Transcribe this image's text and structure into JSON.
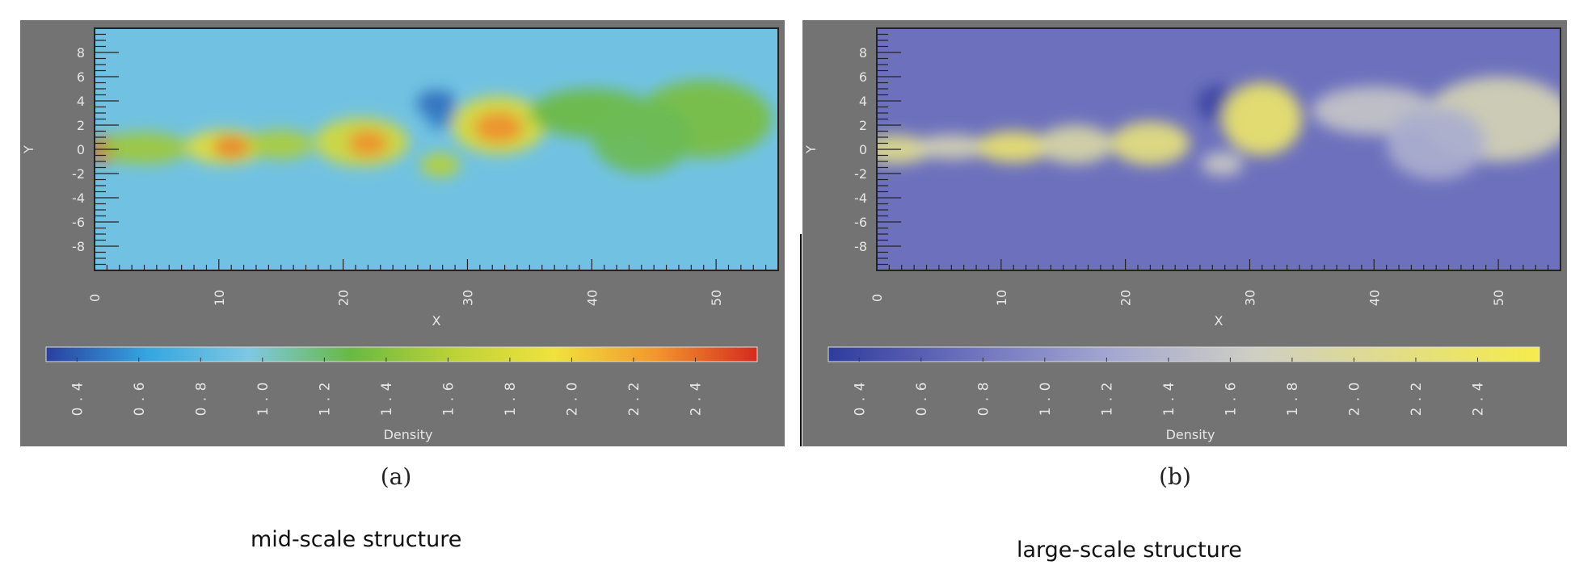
{
  "chart_data": [
    {
      "type": "heatmap",
      "panel_label": "(a)",
      "caption": "mid-scale structure",
      "xlabel": "X",
      "ylabel": "Y",
      "xlim": [
        0,
        55
      ],
      "ylim": [
        -10,
        10
      ],
      "x_ticks": [
        "0",
        "10",
        "20",
        "30",
        "40",
        "50"
      ],
      "y_ticks": [
        "8",
        "6",
        "4",
        "2",
        "0",
        "-2",
        "-4",
        "-6",
        "-8"
      ],
      "colorbar": {
        "label": "Density",
        "range": [
          0.3,
          2.6
        ],
        "ticks": [
          "0.4",
          "0.6",
          "0.8",
          "1.0",
          "1.2",
          "1.4",
          "1.6",
          "1.8",
          "2.0",
          "2.2",
          "2.4"
        ],
        "colors": [
          "#2a3f9e",
          "#35a6e0",
          "#7ec8e3",
          "#69b944",
          "#bcd236",
          "#f1e23d",
          "#f2972d",
          "#d62a1e"
        ]
      },
      "background_value": 0.9,
      "blobs": [
        {
          "x": 0.8,
          "y": 0.0,
          "rx": 1.2,
          "ry": 1.1,
          "v": 2.5
        },
        {
          "x": 4.0,
          "y": 0.1,
          "rx": 3.6,
          "ry": 1.3,
          "v": 1.5
        },
        {
          "x": 10.5,
          "y": 0.2,
          "rx": 3.2,
          "ry": 1.4,
          "v": 1.85
        },
        {
          "x": 11.0,
          "y": 0.2,
          "rx": 1.5,
          "ry": 0.9,
          "v": 2.35
        },
        {
          "x": 15.0,
          "y": 0.4,
          "rx": 2.6,
          "ry": 1.2,
          "v": 1.55
        },
        {
          "x": 21.5,
          "y": 0.6,
          "rx": 3.8,
          "ry": 2.0,
          "v": 1.75
        },
        {
          "x": 22.0,
          "y": 0.5,
          "rx": 1.6,
          "ry": 1.1,
          "v": 2.3
        },
        {
          "x": 27.5,
          "y": 3.8,
          "rx": 1.6,
          "ry": 1.1,
          "v": 0.45
        },
        {
          "x": 28.0,
          "y": 2.5,
          "rx": 1.3,
          "ry": 0.8,
          "v": 0.5
        },
        {
          "x": 32.5,
          "y": 2.0,
          "rx": 3.8,
          "ry": 2.4,
          "v": 1.8
        },
        {
          "x": 32.5,
          "y": 1.8,
          "rx": 2.0,
          "ry": 1.3,
          "v": 2.3
        },
        {
          "x": 27.8,
          "y": -1.3,
          "rx": 1.6,
          "ry": 1.0,
          "v": 1.6
        },
        {
          "x": 40.0,
          "y": 3.0,
          "rx": 5.0,
          "ry": 2.0,
          "v": 1.3
        },
        {
          "x": 49.0,
          "y": 2.5,
          "rx": 5.5,
          "ry": 3.2,
          "v": 1.35
        },
        {
          "x": 44.0,
          "y": 1.0,
          "rx": 4.0,
          "ry": 3.0,
          "v": 1.25
        }
      ]
    },
    {
      "type": "heatmap",
      "panel_label": "(b)",
      "caption": "large-scale structure",
      "xlabel": "X",
      "ylabel": "Y",
      "xlim": [
        0,
        55
      ],
      "ylim": [
        -10,
        10
      ],
      "x_ticks": [
        "0",
        "10",
        "20",
        "30",
        "40",
        "50"
      ],
      "y_ticks": [
        "8",
        "6",
        "4",
        "2",
        "0",
        "-2",
        "-4",
        "-6",
        "-8"
      ],
      "colorbar": {
        "label": "Density",
        "range": [
          0.3,
          2.6
        ],
        "ticks": [
          "0.4",
          "0.6",
          "0.8",
          "1.0",
          "1.2",
          "1.4",
          "1.6",
          "1.8",
          "2.0",
          "2.2",
          "2.4"
        ],
        "colors": [
          "#2e3c9c",
          "#6e72be",
          "#a4a8d0",
          "#cfcfc4",
          "#e2dd86",
          "#f6ec4a"
        ]
      },
      "background_value": 0.75,
      "blobs": [
        {
          "x": 1.5,
          "y": 0.0,
          "rx": 3.0,
          "ry": 1.2,
          "v": 2.1
        },
        {
          "x": 6.0,
          "y": 0.2,
          "rx": 3.0,
          "ry": 1.0,
          "v": 1.8
        },
        {
          "x": 11.0,
          "y": 0.2,
          "rx": 3.0,
          "ry": 1.3,
          "v": 2.3
        },
        {
          "x": 16.0,
          "y": 0.4,
          "rx": 3.0,
          "ry": 1.6,
          "v": 1.9
        },
        {
          "x": 22.0,
          "y": 0.5,
          "rx": 3.2,
          "ry": 1.8,
          "v": 2.2
        },
        {
          "x": 27.5,
          "y": 3.8,
          "rx": 1.8,
          "ry": 1.5,
          "v": 0.4
        },
        {
          "x": 31.0,
          "y": 2.5,
          "rx": 3.2,
          "ry": 3.0,
          "v": 2.35
        },
        {
          "x": 27.8,
          "y": -1.2,
          "rx": 1.7,
          "ry": 1.0,
          "v": 1.6
        },
        {
          "x": 40.0,
          "y": 3.2,
          "rx": 5.0,
          "ry": 2.0,
          "v": 1.55
        },
        {
          "x": 50.0,
          "y": 2.5,
          "rx": 6.0,
          "ry": 3.5,
          "v": 1.8
        },
        {
          "x": 45.0,
          "y": 0.5,
          "rx": 4.0,
          "ry": 3.0,
          "v": 1.3
        }
      ]
    }
  ]
}
